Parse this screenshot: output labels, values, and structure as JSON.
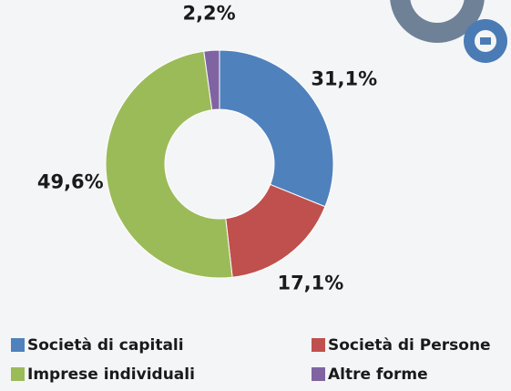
{
  "chart_data": {
    "type": "donut",
    "categories": [
      "Società di capitali",
      "Società di Persone",
      "Imprese individuali",
      "Altre forme"
    ],
    "values": [
      31.1,
      17.1,
      49.6,
      2.2
    ],
    "value_labels": [
      "31,1%",
      "17,1%",
      "49,6%",
      "2,2%"
    ],
    "colors": [
      "#4f81bd",
      "#c0504d",
      "#9bbb59",
      "#8064a2"
    ]
  }
}
